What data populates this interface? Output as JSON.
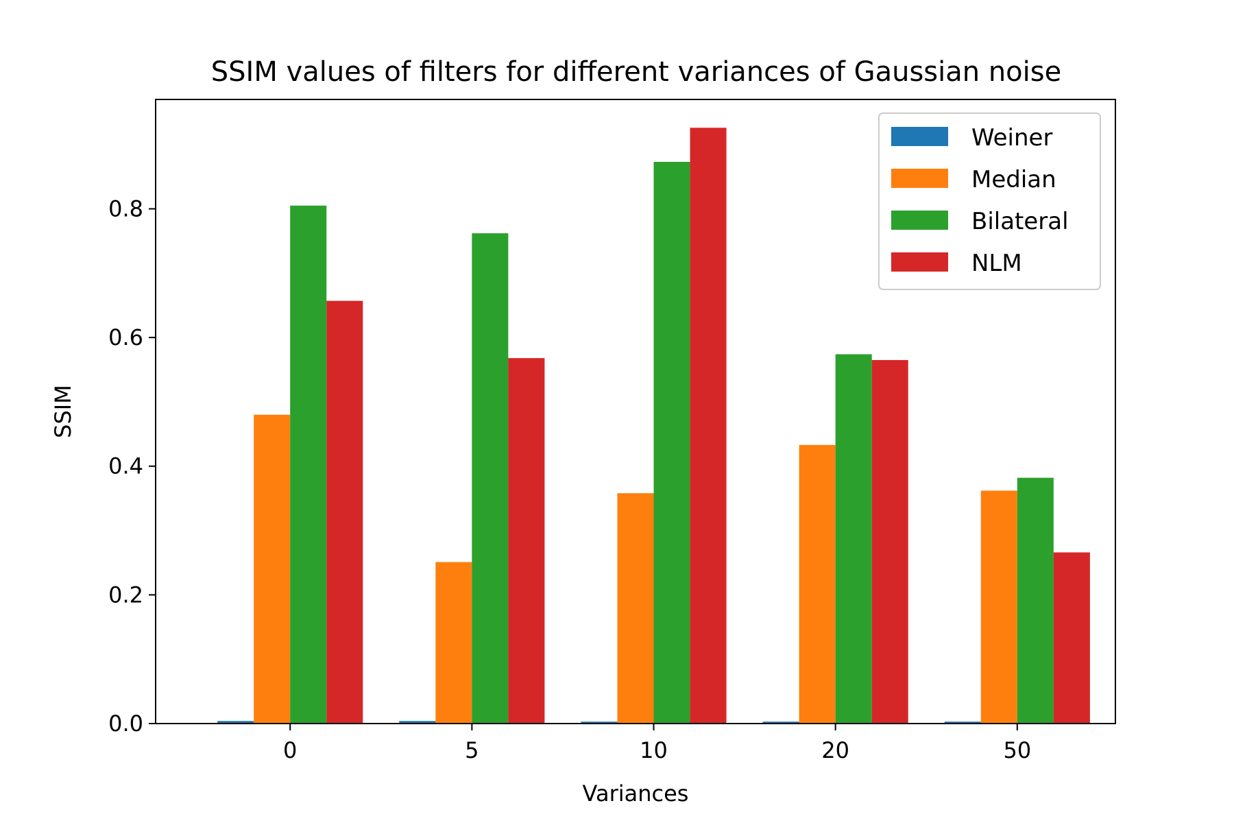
{
  "chart_data": {
    "type": "bar",
    "title": "SSIM values of filters for different variances of Gaussian noise",
    "xlabel": "Variances",
    "ylabel": "SSIM",
    "categories": [
      "0",
      "5",
      "10",
      "20",
      "50"
    ],
    "yticks": [
      "0.0",
      "0.2",
      "0.4",
      "0.6",
      "0.8"
    ],
    "ylim": [
      0,
      0.97
    ],
    "grid": false,
    "legend_position": "top-right",
    "series": [
      {
        "name": "Weiner",
        "color": "#1f77b4",
        "values": [
          0.004,
          0.004,
          0.003,
          0.003,
          0.003
        ]
      },
      {
        "name": "Median",
        "color": "#ff7f0e",
        "values": [
          0.48,
          0.251,
          0.358,
          0.433,
          0.362
        ]
      },
      {
        "name": "Bilateral",
        "color": "#2ca02c",
        "values": [
          0.805,
          0.762,
          0.873,
          0.574,
          0.382
        ]
      },
      {
        "name": "NLM",
        "color": "#d62728",
        "values": [
          0.657,
          0.568,
          0.926,
          0.565,
          0.266
        ]
      }
    ]
  }
}
